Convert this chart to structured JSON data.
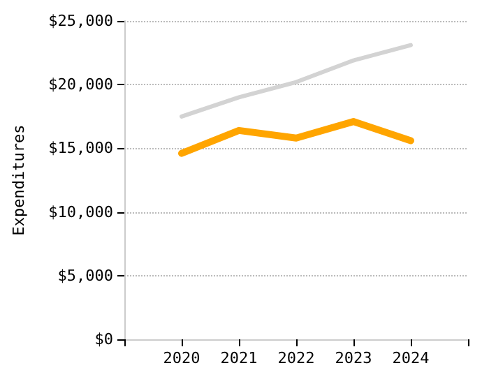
{
  "chart_data": {
    "type": "line",
    "ylabel": "Expenditures",
    "x": [
      2020,
      2021,
      2022,
      2023,
      2024
    ],
    "series": [
      {
        "color": "#d3d3d3",
        "values": [
          17500,
          19000,
          20200,
          21900,
          23100
        ]
      },
      {
        "color": "#ffa500",
        "values": [
          14600,
          16400,
          15800,
          17100,
          15600
        ]
      }
    ],
    "xlim": [
      2019,
      2025
    ],
    "xticks": [
      {
        "value": 2019,
        "label": null
      },
      2020,
      2021,
      2022,
      2023,
      2024,
      {
        "value": 2025,
        "label": null
      }
    ],
    "ylim": [
      0,
      25000
    ],
    "yticks": [
      {
        "value": 0,
        "label": "$0"
      },
      {
        "value": 5000,
        "label": "$5,000"
      },
      {
        "value": 10000,
        "label": "$10,000"
      },
      {
        "value": 15000,
        "label": "$15,000"
      },
      {
        "value": 20000,
        "label": "$20,000"
      },
      {
        "value": 25000,
        "label": "$25,000"
      }
    ],
    "grid": "y",
    "marker": "none",
    "line_style": "solid"
  }
}
